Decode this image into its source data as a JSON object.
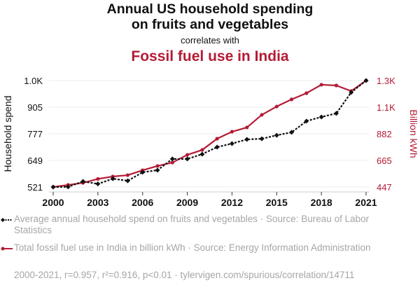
{
  "header": {
    "title_line1": "Annual US household spending",
    "title_line2": "on fruits and vegetables",
    "connector": "correlates with",
    "subtitle": "Fossil fuel use in India"
  },
  "colors": {
    "series1": "#111111",
    "series2": "#b41b35",
    "grid": "#eeeeee",
    "muted_text": "#a6a6a6"
  },
  "legend": {
    "series1_text": "Average annual household spend on fruits and vegetables · Source: Bureau of Labor Statistics",
    "series2_text": "Total fossil fuel use in India in billion kWh · Source: Energy Information Administration"
  },
  "footer": {
    "stats": "2000-2021, r=0.957, r²=0.916, p<0.01 · tylervigen.com/spurious/correlation/14711"
  },
  "chart_data": {
    "type": "line",
    "x": [
      2000,
      2001,
      2002,
      2003,
      2004,
      2005,
      2006,
      2007,
      2008,
      2009,
      2010,
      2011,
      2012,
      2013,
      2014,
      2015,
      2016,
      2017,
      2018,
      2019,
      2020,
      2021
    ],
    "x_ticks": [
      "2000",
      "2003",
      "2006",
      "2009",
      "2012",
      "2015",
      "2018",
      "2021"
    ],
    "x_tick_values": [
      2000,
      2003,
      2006,
      2009,
      2012,
      2015,
      2018,
      2021
    ],
    "series": [
      {
        "name": "Average annual household spend on fruits and vegetables",
        "axis": "left",
        "style": "dotted",
        "values": [
          521,
          522,
          548,
          536,
          561,
          551,
          592,
          602,
          656,
          656,
          679,
          713,
          730,
          750,
          753,
          770,
          784,
          838,
          858,
          875,
          976,
          1033
        ]
      },
      {
        "name": "Total fossil fuel use in India in billion kWh",
        "axis": "right",
        "style": "solid",
        "values": [
          447,
          464,
          481,
          513,
          533,
          544,
          584,
          619,
          647,
          710,
          750,
          842,
          899,
          934,
          1037,
          1105,
          1163,
          1214,
          1283,
          1277,
          1231,
          1317
        ]
      }
    ],
    "left_axis": {
      "label": "Household spend",
      "ticks": [
        "521",
        "649",
        "777",
        "905",
        "1.0K"
      ],
      "tick_values": [
        521,
        649,
        777,
        905,
        1033
      ],
      "range": [
        521,
        1033
      ]
    },
    "right_axis": {
      "label": "Billion kWh",
      "ticks": [
        "447",
        "665",
        "882",
        "1.1K",
        "1.3K"
      ],
      "tick_values": [
        447,
        665,
        882,
        1100,
        1317
      ],
      "range": [
        447,
        1317
      ]
    },
    "xlim": [
      2000,
      2021
    ],
    "grid": true,
    "legend_position": "bottom"
  }
}
